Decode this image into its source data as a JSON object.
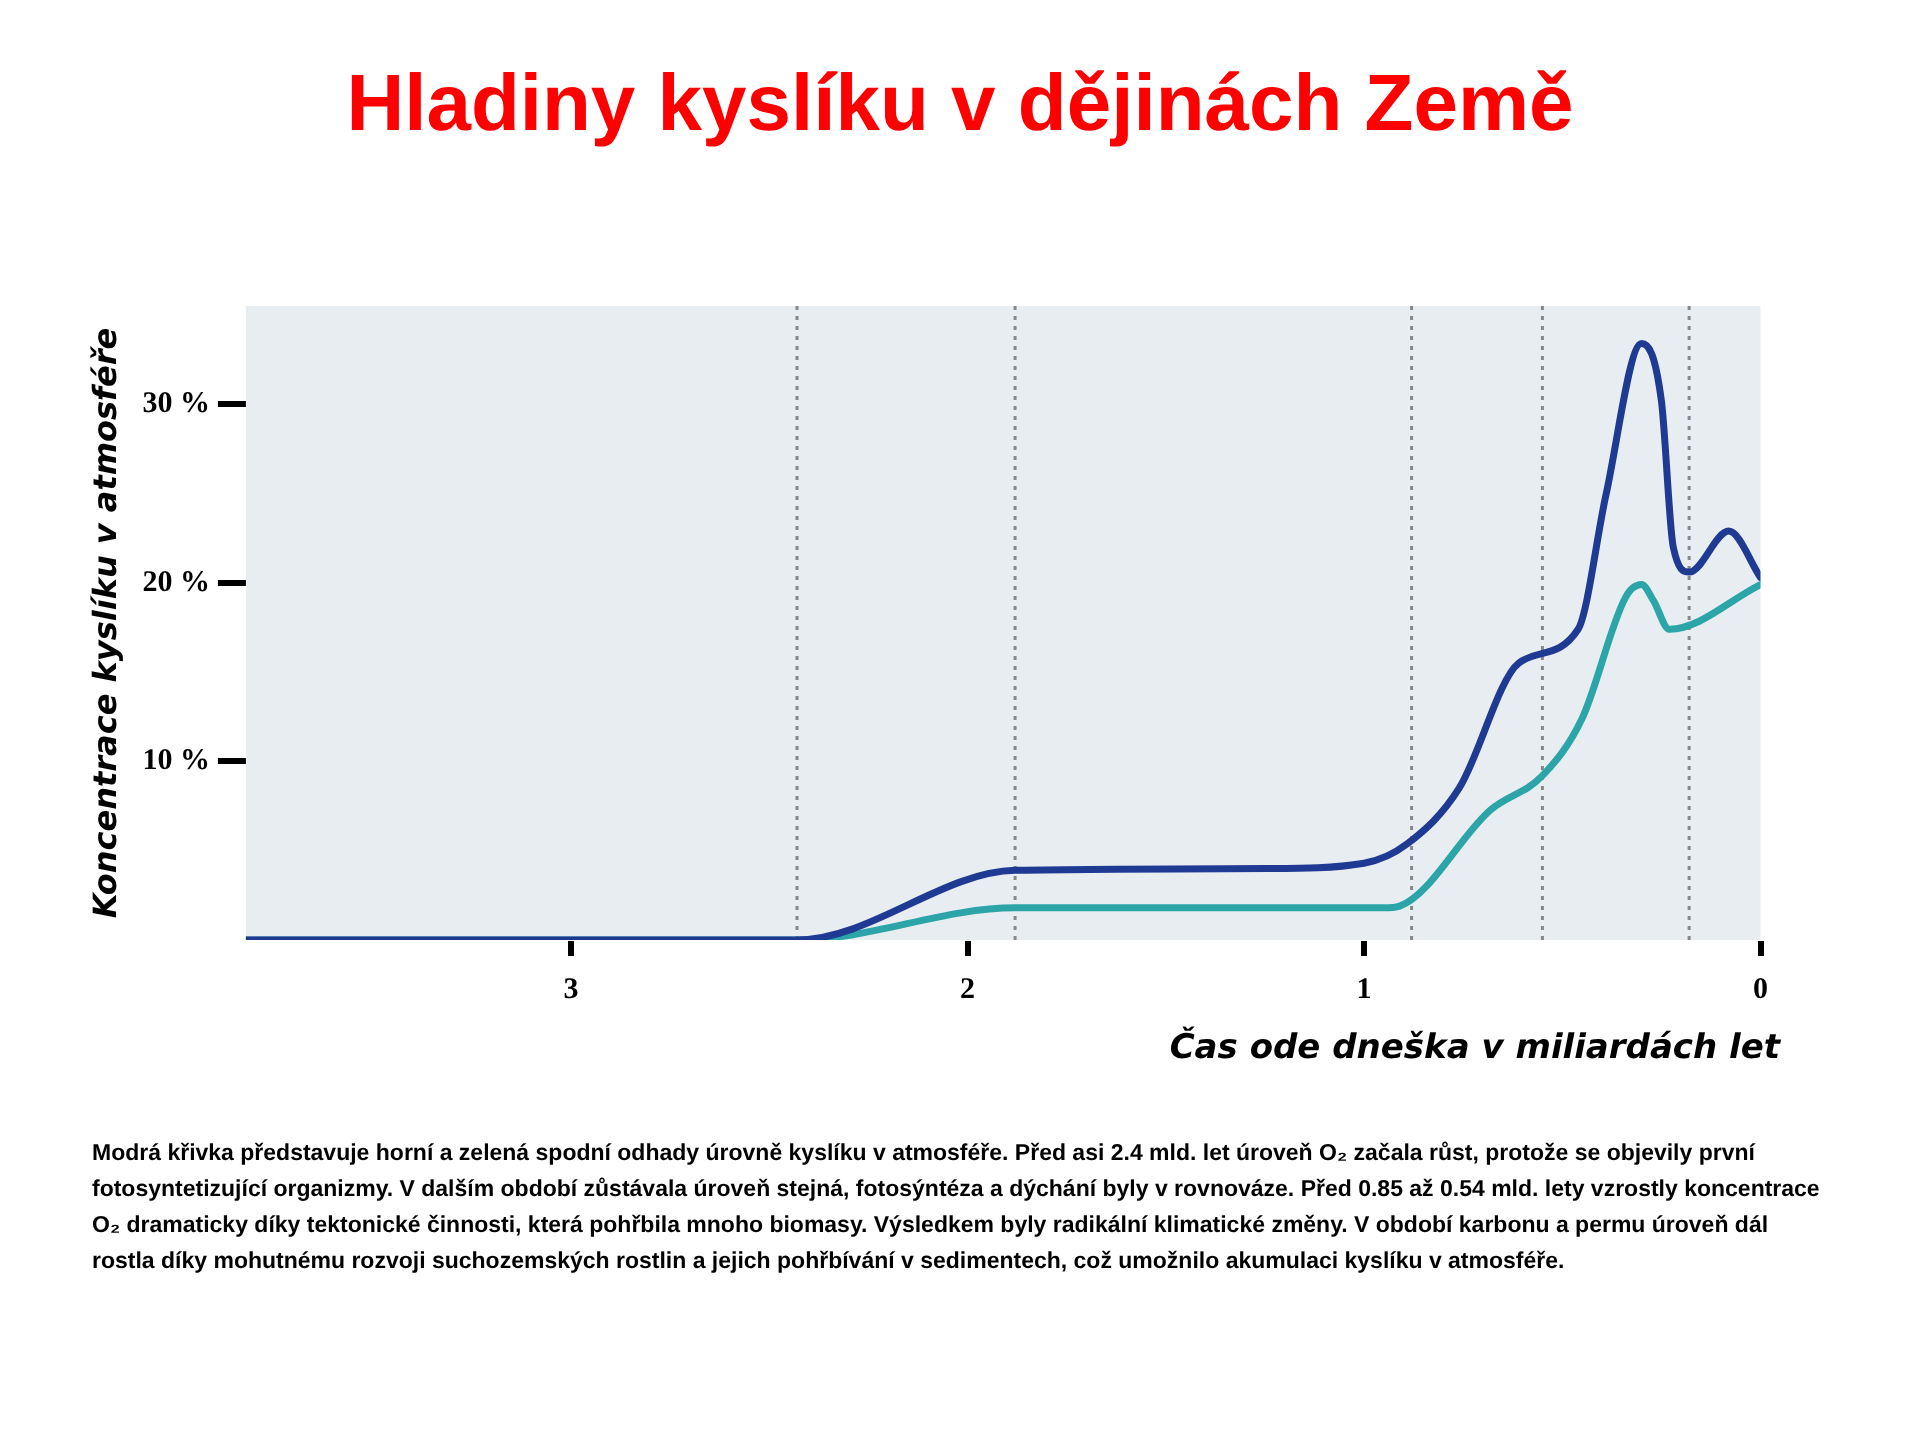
{
  "chart_data": {
    "type": "line",
    "title": "Hladiny kyslíku v dějinách Země",
    "xlabel": "Čas ode dneška v miliardách let",
    "ylabel": "Koncentrace kyslíku v atmosféře",
    "xlim": [
      3.82,
      0
    ],
    "xticks": [
      3,
      2,
      1,
      0
    ],
    "ylim": [
      0,
      35.5
    ],
    "yticks": [
      {
        "value": 10,
        "label": "10 %"
      },
      {
        "value": 20,
        "label": "20 %"
      },
      {
        "value": 30,
        "label": "30 %"
      }
    ],
    "grid": false,
    "legend": false,
    "marker": "none",
    "line_style": "solid",
    "series": [
      {
        "color": "#1f3a93",
        "x": [
          3.82,
          2.43,
          1.88,
          1.24,
          1.0,
          0.89,
          0.76,
          0.61,
          0.46,
          0.39,
          0.3,
          0.25,
          0.22,
          0.18,
          0.08,
          0
        ],
        "values": [
          0,
          0,
          3.9,
          4.0,
          4.3,
          5.4,
          8.5,
          15.5,
          17.4,
          24.9,
          33.4,
          30.2,
          22.0,
          20.6,
          22.9,
          20.3
        ]
      },
      {
        "color": "#2ca5a8",
        "x": [
          3.82,
          2.43,
          1.88,
          0.95,
          0.91,
          0.68,
          0.55,
          0.45,
          0.34,
          0.3,
          0.27,
          0.23,
          0
        ],
        "values": [
          0,
          0,
          1.8,
          1.8,
          1.9,
          7.3,
          9.2,
          12.4,
          19.2,
          19.9,
          19.0,
          17.4,
          19.9
        ]
      }
    ],
    "ref_lines": [
      {
        "axis": "x",
        "value": 2.43,
        "color": "#888888",
        "line_style": "dotted"
      },
      {
        "axis": "x",
        "value": 1.88,
        "color": "#888888",
        "line_style": "dotted"
      },
      {
        "axis": "x",
        "value": 0.88,
        "color": "#888888",
        "line_style": "dotted"
      },
      {
        "axis": "x",
        "value": 0.55,
        "color": "#888888",
        "line_style": "dotted"
      },
      {
        "axis": "x",
        "value": 0.18,
        "color": "#888888",
        "line_style": "dotted"
      }
    ],
    "annotations": [
      "Modrá křivka představuje horní a zelená spodní odhady úrovně kyslíku v atmosféře. Před asi 2.4 mld. let úroveň O₂ začala růst, protože se objevily první fotosyntetizující organizmy. V dalším období zůstávala úroveň stejná, fotosýntéza a dýchání byly v rovnováze. Před 0.85 až 0.54 mld. lety vzrostly koncentrace O₂ dramaticky díky tektonické činnosti, která pohřbila mnoho biomasy. Výsledkem byly radikální klimatické změny.  V období karbonu a permu úroveň dál rostla díky mohutnému rozvoji suchozemských rostlin a jejich pohřbívání v sedimentech, což umožnilo akumulaci kyslíku v atmosféře."
    ]
  }
}
